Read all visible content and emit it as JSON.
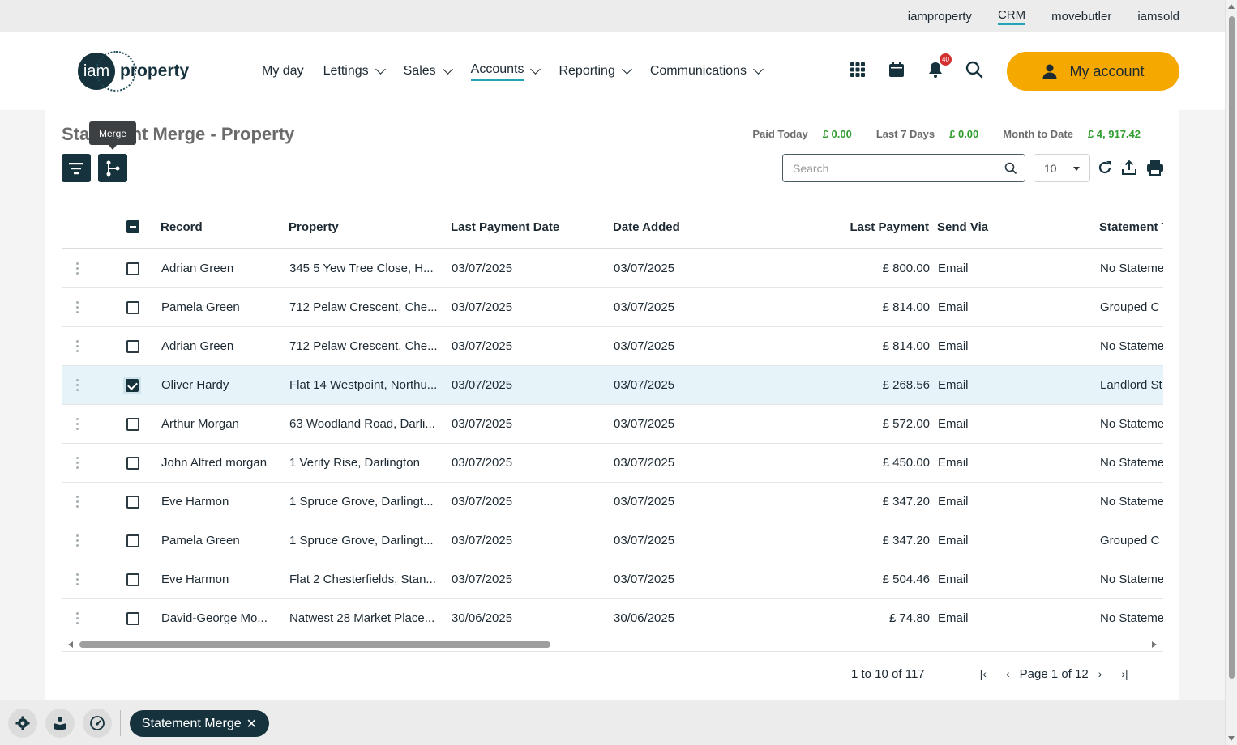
{
  "top_links": [
    "iamproperty",
    "CRM",
    "movebutler",
    "iamsold"
  ],
  "top_links_active": "CRM",
  "logo": {
    "mark": "iam",
    "word": "property"
  },
  "nav": [
    {
      "label": "My day",
      "dropdown": false,
      "active": false
    },
    {
      "label": "Lettings",
      "dropdown": true,
      "active": false
    },
    {
      "label": "Sales",
      "dropdown": true,
      "active": false
    },
    {
      "label": "Accounts",
      "dropdown": true,
      "active": true
    },
    {
      "label": "Reporting",
      "dropdown": true,
      "active": false
    },
    {
      "label": "Communications",
      "dropdown": true,
      "active": false
    }
  ],
  "header_icons": [
    "apps-grid-icon",
    "calendar-icon",
    "bell-icon",
    "search-icon"
  ],
  "notification_count": "40",
  "my_account_label": "My account",
  "page": {
    "title": "Statement Merge - Property",
    "tooltip": "Merge",
    "stats": [
      {
        "label": "Paid Today",
        "value": "£ 0.00"
      },
      {
        "label": "Last 7 Days",
        "value": "£ 0.00"
      },
      {
        "label": "Month to Date",
        "value": "£ 4, 917.42"
      }
    ],
    "search_placeholder": "Search",
    "page_size": "10"
  },
  "table": {
    "columns": [
      "Record",
      "Property",
      "Last Payment Date",
      "Date Added",
      "Last Payment",
      "Send Via",
      "Statement T"
    ],
    "rows": [
      {
        "record": "Adrian Green",
        "property": "345 5 Yew Tree Close, H...",
        "last_payment_date": "03/07/2025",
        "date_added": "03/07/2025",
        "last_payment": "£ 800.00",
        "send_via": "Email",
        "statement": "No Stateme",
        "selected": false
      },
      {
        "record": "Pamela Green",
        "property": "712 Pelaw Crescent, Che...",
        "last_payment_date": "03/07/2025",
        "date_added": "03/07/2025",
        "last_payment": "£ 814.00",
        "send_via": "Email",
        "statement": "Grouped C",
        "selected": false
      },
      {
        "record": "Adrian Green",
        "property": "712 Pelaw Crescent, Che...",
        "last_payment_date": "03/07/2025",
        "date_added": "03/07/2025",
        "last_payment": "£ 814.00",
        "send_via": "Email",
        "statement": "No Stateme",
        "selected": false
      },
      {
        "record": "Oliver Hardy",
        "property": "Flat 14 Westpoint, Northu...",
        "last_payment_date": "03/07/2025",
        "date_added": "03/07/2025",
        "last_payment": "£ 268.56",
        "send_via": "Email",
        "statement": "Landlord St",
        "selected": true
      },
      {
        "record": "Arthur Morgan",
        "property": "63 Woodland Road, Darli...",
        "last_payment_date": "03/07/2025",
        "date_added": "03/07/2025",
        "last_payment": "£ 572.00",
        "send_via": "Email",
        "statement": "No Stateme",
        "selected": false
      },
      {
        "record": "John Alfred morgan",
        "property": "1 Verity Rise, Darlington",
        "last_payment_date": "03/07/2025",
        "date_added": "03/07/2025",
        "last_payment": "£ 450.00",
        "send_via": "Email",
        "statement": "No Stateme",
        "selected": false
      },
      {
        "record": "Eve Harmon",
        "property": "1 Spruce Grove, Darlingt...",
        "last_payment_date": "03/07/2025",
        "date_added": "03/07/2025",
        "last_payment": "£ 347.20",
        "send_via": "Email",
        "statement": "No Stateme",
        "selected": false
      },
      {
        "record": "Pamela Green",
        "property": "1 Spruce Grove, Darlingt...",
        "last_payment_date": "03/07/2025",
        "date_added": "03/07/2025",
        "last_payment": "£ 347.20",
        "send_via": "Email",
        "statement": "Grouped C",
        "selected": false
      },
      {
        "record": "Eve Harmon",
        "property": "Flat 2 Chesterfields, Stan...",
        "last_payment_date": "03/07/2025",
        "date_added": "03/07/2025",
        "last_payment": "£ 504.46",
        "send_via": "Email",
        "statement": "No Stateme",
        "selected": false
      },
      {
        "record": "David-George Mo...",
        "property": "Natwest 28 Market Place...",
        "last_payment_date": "30/06/2025",
        "date_added": "30/06/2025",
        "last_payment": "£ 74.80",
        "send_via": "Email",
        "statement": "No Stateme",
        "selected": false
      }
    ]
  },
  "pagination": {
    "range": "1 to 10 of 117",
    "page_label": "Page 1 of 12"
  },
  "bottom_tab": {
    "label": "Statement Merge",
    "close": "✕"
  },
  "colors": {
    "brand_dark": "#16333d",
    "accent": "#f5a800",
    "positive": "#2e9d2e",
    "link_underline": "#1fa5b5"
  }
}
